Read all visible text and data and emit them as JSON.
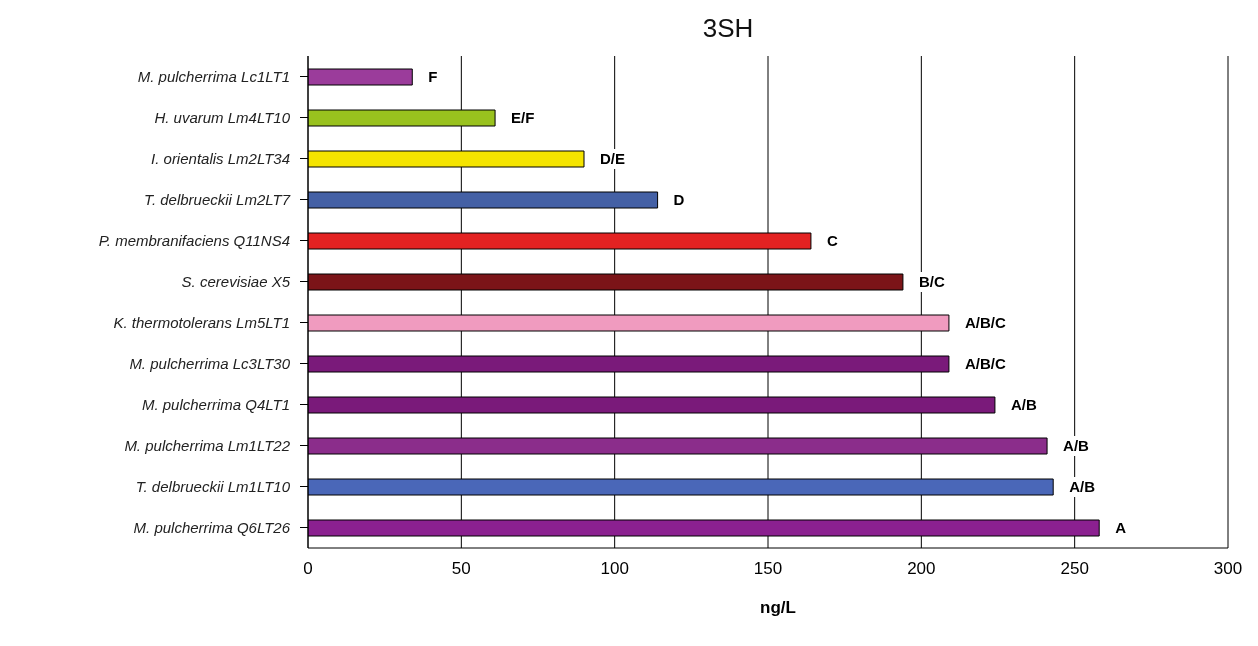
{
  "chart_data": {
    "type": "bar",
    "orientation": "horizontal",
    "title": "3SH",
    "xlabel": "ng/L",
    "categories": [
      "M. pulcherrima Lc1LT1",
      "H. uvarum Lm4LT10",
      "I. orientalis Lm2LT34",
      "T. delbrueckii Lm2LT7",
      "P. membranifaciens Q11NS4",
      "S. cerevisiae X5",
      "K. thermotolerans Lm5LT1",
      "M. pulcherrima Lc3LT30",
      "M. pulcherrima Q4LT1",
      "M. pulcherrima Lm1LT22",
      "T. delbrueckii Lm1LT10",
      "M. pulcherrima Q6LT26"
    ],
    "values": [
      34,
      61,
      90,
      114,
      164,
      194,
      209,
      209,
      224,
      241,
      243,
      258
    ],
    "colors": [
      "#9b3c9b",
      "#99c21e",
      "#f5e400",
      "#4460a5",
      "#e32222",
      "#7b1418",
      "#f09bbf",
      "#7a1a7a",
      "#7a1a7a",
      "#8b2d8b",
      "#4a67b8",
      "#8b2090"
    ],
    "value_labels": [
      "F",
      "E/F",
      "D/E",
      "D",
      "C",
      "B/C",
      "A/B/C",
      "A/B/C",
      "A/B",
      "A/B",
      "A/B",
      "A"
    ],
    "xlim": [
      0,
      300
    ],
    "xticks": [
      0,
      50,
      100,
      150,
      200,
      250,
      300
    ],
    "grid": "x"
  }
}
